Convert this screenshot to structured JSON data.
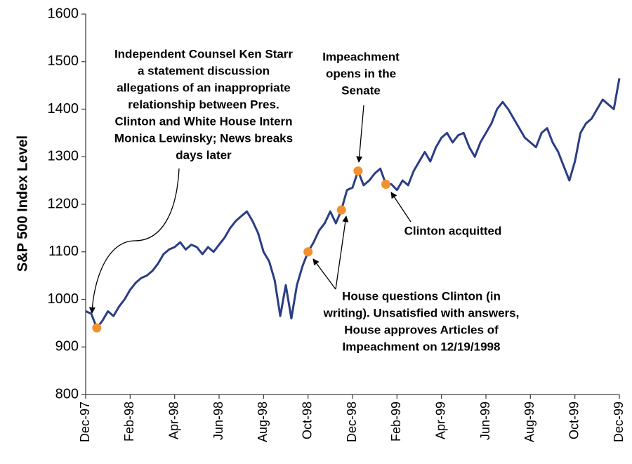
{
  "chart_data": {
    "type": "line",
    "ylabel": "S&P 500 Index Level",
    "ylim": [
      800,
      1600
    ],
    "yticks": [
      800,
      900,
      1000,
      1100,
      1200,
      1300,
      1400,
      1500,
      1600
    ],
    "xticks": [
      "Dec-97",
      "Feb-98",
      "Apr-98",
      "Jun-98",
      "Aug-98",
      "Oct-98",
      "Dec-98",
      "Feb-99",
      "Apr-99",
      "Jun-99",
      "Aug-99",
      "Oct-99",
      "Dec-99"
    ],
    "color": "#2b3d84",
    "marker_color": "#f39130",
    "values": [
      975,
      970,
      940,
      955,
      975,
      965,
      985,
      1000,
      1020,
      1035,
      1045,
      1050,
      1060,
      1075,
      1095,
      1105,
      1110,
      1120,
      1105,
      1115,
      1110,
      1095,
      1110,
      1100,
      1115,
      1130,
      1150,
      1165,
      1175,
      1185,
      1165,
      1140,
      1100,
      1080,
      1040,
      965,
      1030,
      960,
      1030,
      1070,
      1100,
      1120,
      1145,
      1160,
      1185,
      1160,
      1188,
      1230,
      1235,
      1270,
      1240,
      1250,
      1265,
      1275,
      1242,
      1242,
      1230,
      1250,
      1240,
      1270,
      1290,
      1310,
      1290,
      1320,
      1340,
      1350,
      1330,
      1345,
      1350,
      1320,
      1300,
      1330,
      1350,
      1370,
      1400,
      1415,
      1400,
      1380,
      1360,
      1340,
      1330,
      1320,
      1350,
      1360,
      1330,
      1310,
      1280,
      1250,
      1290,
      1350,
      1370,
      1380,
      1400,
      1420,
      1410,
      1400,
      1465
    ],
    "highlights": [
      null,
      null,
      940,
      null,
      null,
      null,
      null,
      null,
      null,
      null,
      null,
      null,
      null,
      null,
      null,
      null,
      null,
      null,
      null,
      null,
      null,
      null,
      null,
      null,
      null,
      null,
      null,
      null,
      null,
      null,
      null,
      null,
      null,
      null,
      null,
      null,
      null,
      null,
      null,
      null,
      1100,
      null,
      null,
      null,
      null,
      null,
      1188,
      null,
      null,
      1270,
      null,
      null,
      null,
      null,
      1242,
      null,
      null,
      null,
      null,
      null,
      null,
      null,
      null,
      null,
      null,
      null,
      null,
      null,
      null,
      null,
      null,
      null,
      null,
      null,
      null,
      null,
      null,
      null,
      null,
      null,
      null,
      null,
      null,
      null,
      null,
      null,
      null,
      null,
      null,
      null,
      null,
      null,
      null,
      null,
      null,
      null,
      null
    ],
    "annotations": [
      [
        "Independent Counsel Ken Starr",
        "a statement discussion",
        "allegations of an inappropriate",
        "relationship between Pres.",
        "Clinton and White House Intern",
        "Monica Lewinsky; News breaks",
        "days later"
      ],
      [
        "Impeachment",
        "opens in the",
        "Senate"
      ],
      [
        "Clinton acquitted"
      ],
      [
        "House questions Clinton (in",
        "writing). Unsatisfied with answers,",
        "House approves Articles of",
        "Impeachment on 12/19/1998"
      ]
    ]
  }
}
